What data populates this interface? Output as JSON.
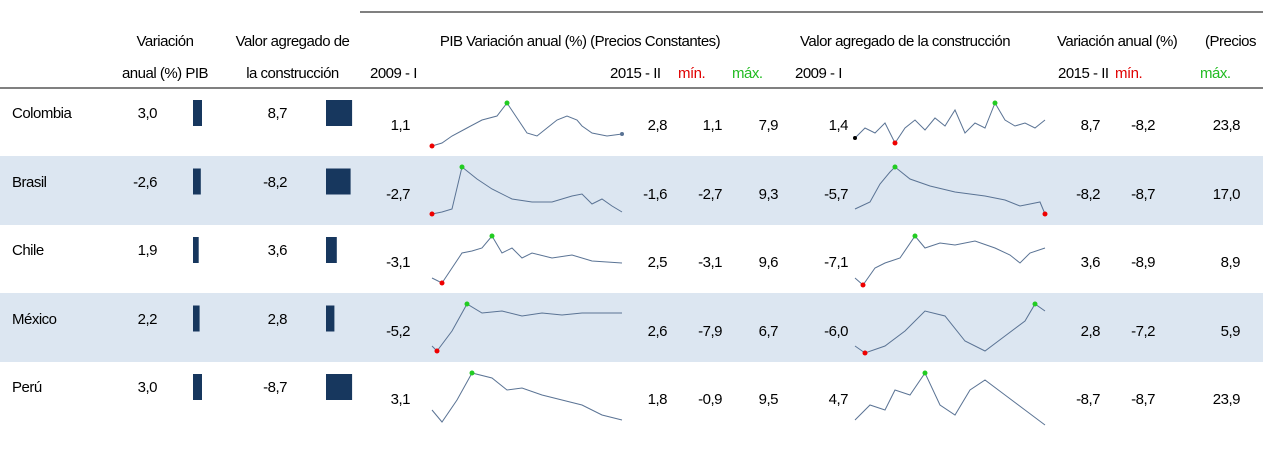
{
  "header": {
    "row1": [
      "Variación",
      "Valor agregado de",
      "PIB Variación anual (%) (Precios Constantes)",
      "Valor agregado de la construcción",
      "Variación anual (%)",
      "(Precios"
    ],
    "row2": [
      "anual (%) PIB",
      "la construcción",
      "2009 - I",
      "2015 - II",
      "mín.",
      "máx.",
      "2009 - I",
      "2015 - II",
      "mín.",
      "máx."
    ]
  },
  "rows": [
    {
      "country": "Colombia",
      "pib": {
        "value": 3.0,
        "label": "3,0"
      },
      "construccion": {
        "value": 8.7,
        "label": "8,7"
      },
      "cells": [
        "1,1",
        "2,8",
        "1,1",
        "7,9",
        "1,4",
        "8,7",
        "-8,2",
        "23,8"
      ]
    },
    {
      "country": "Brasil",
      "pib": {
        "value": -2.6,
        "label": "-2,6"
      },
      "construccion": {
        "value": -8.2,
        "label": "-8,2"
      },
      "cells": [
        "-2,7",
        "-1,6",
        "-2,7",
        "9,3",
        "-5,7",
        "-8,2",
        "-8,7",
        "17,0"
      ]
    },
    {
      "country": "Chile",
      "pib": {
        "value": 1.9,
        "label": "1,9"
      },
      "construccion": {
        "value": 3.6,
        "label": "3,6"
      },
      "cells": [
        "-3,1",
        "2,5",
        "-3,1",
        "9,6",
        "-7,1",
        "3,6",
        "-8,9",
        "8,9"
      ]
    },
    {
      "country": "México",
      "pib": {
        "value": 2.2,
        "label": "2,2"
      },
      "construccion": {
        "value": 2.8,
        "label": "2,8"
      },
      "cells": [
        "-5,2",
        "2,6",
        "-7,9",
        "6,7",
        "-6,0",
        "2,8",
        "-7,2",
        "5,9"
      ]
    },
    {
      "country": "Perú",
      "pib": {
        "value": 3.0,
        "label": "3,0"
      },
      "construccion": {
        "value": -8.7,
        "label": "-8,7"
      },
      "cells": [
        "3,1",
        "1,8",
        "-0,9",
        "9,5",
        "4,7",
        "-8,7",
        "-8,7",
        "23,9"
      ]
    }
  ]
}
